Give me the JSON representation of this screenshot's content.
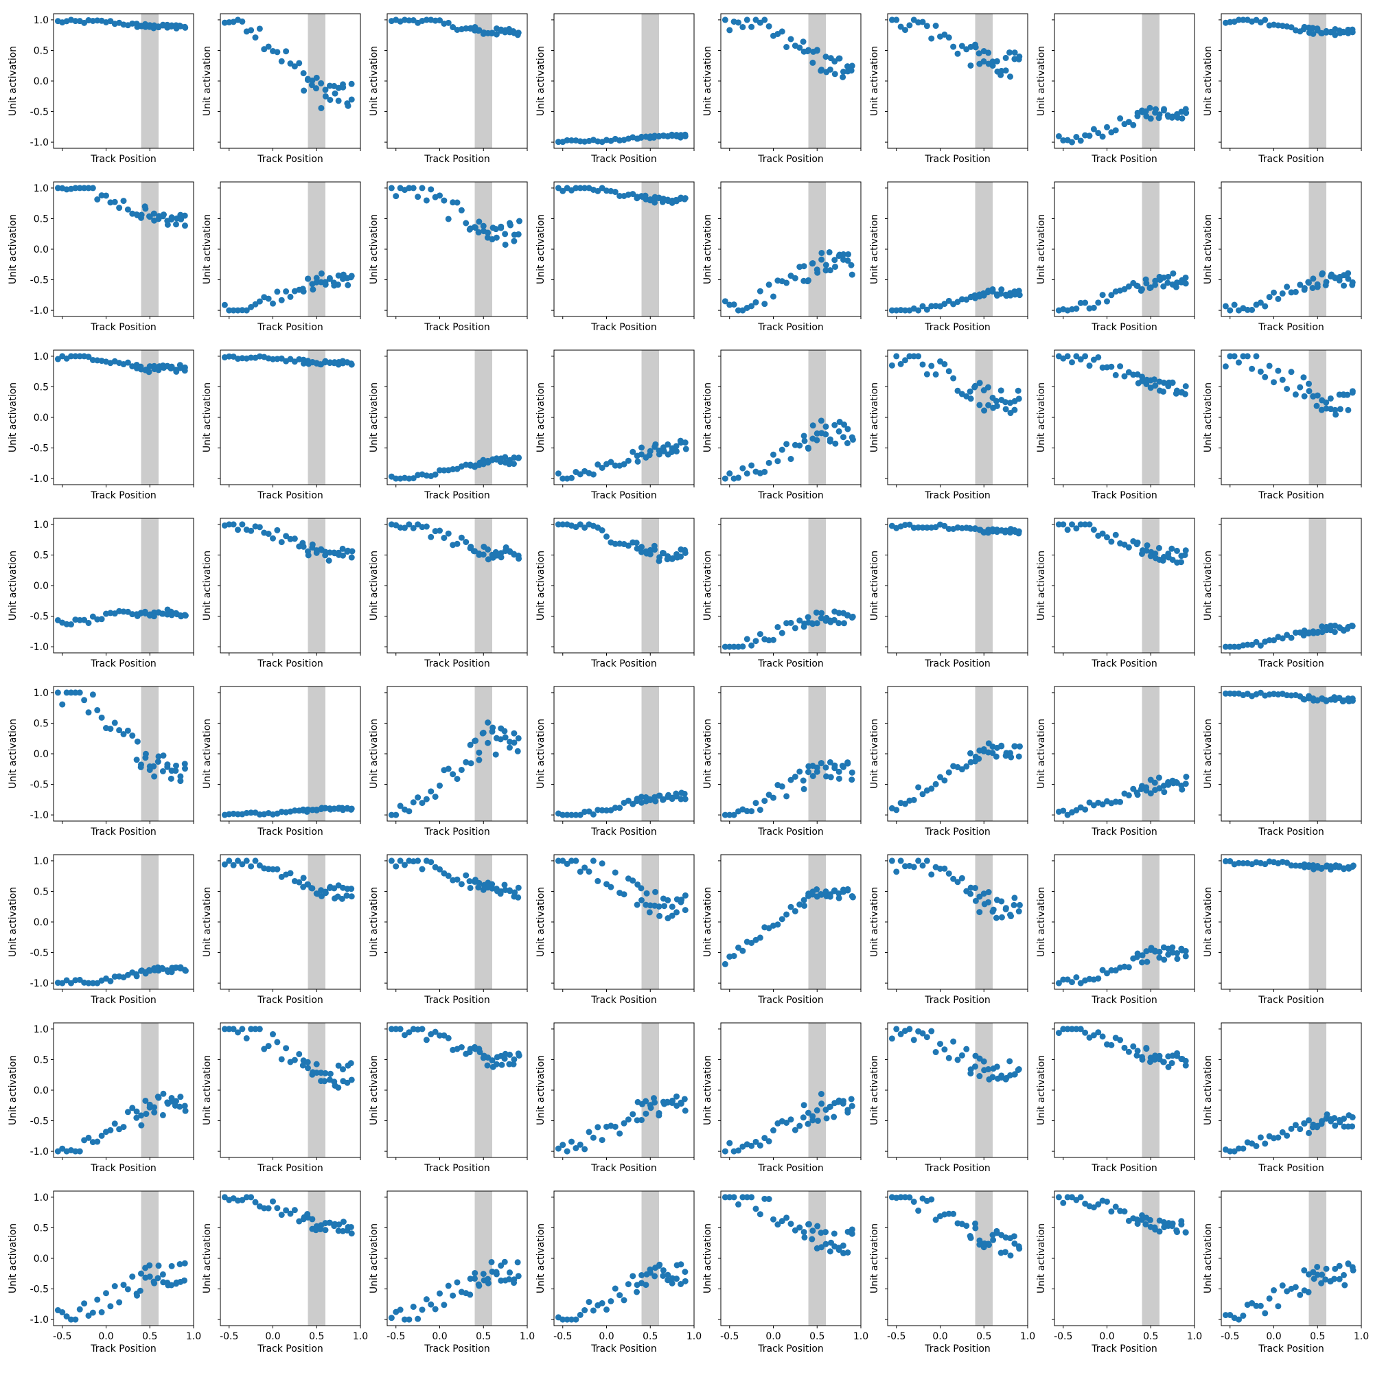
{
  "chart_data": {
    "type": "scatter",
    "layout": "8x8 grid of subplots",
    "xlabel": "Track Position",
    "ylabel": "Unit activation",
    "xlim": [
      -0.6,
      1.0
    ],
    "ylim": [
      -1.1,
      1.1
    ],
    "x_ticks": [
      "-0.5",
      "0.0",
      "0.5",
      "1.0"
    ],
    "y_ticks": [
      "1.0",
      "0.5",
      "0.0",
      "-0.5",
      "-1.0"
    ],
    "shaded_region": [
      0.4,
      0.6
    ],
    "colors": {
      "points": "#1f77b4",
      "shade": "#7f7f7f"
    },
    "panel_kinds": [
      [
        "flat_high",
        "decreasing_strong",
        "flat_high_mid",
        "flat_low",
        "decreasing_mid",
        "decreasing_mid",
        "increasing_low",
        "flat_high_mid"
      ],
      [
        "decreasing_gentle",
        "increasing_low",
        "decreasing_mid",
        "flat_high_mid",
        "increasing_mid",
        "increasing_very_low",
        "increasing_low",
        "increasing_low"
      ],
      [
        "flat_high_mid",
        "flat_high",
        "increasing_very_low",
        "increasing_low",
        "increasing_mid",
        "decreasing_mid",
        "decreasing_gentle",
        "decreasing_mid"
      ],
      [
        "flat_negative",
        "decreasing_gentle",
        "decreasing_gentle",
        "decreasing_gentle",
        "increasing_low",
        "flat_high",
        "decreasing_gentle",
        "increasing_very_low"
      ],
      [
        "decreasing_strong",
        "flat_low",
        "increasing_strong",
        "increasing_very_low",
        "increasing_mid",
        "increasing_from_mid",
        "increasing_low",
        "flat_high"
      ],
      [
        "flat_low_up",
        "decreasing_gentle",
        "decreasing_gentle",
        "decreasing_mid",
        "increasing_from_mid_high",
        "decreasing_mid",
        "increasing_low",
        "flat_high"
      ],
      [
        "increasing_mid",
        "decreasing_mid",
        "decreasing_gentle",
        "increasing_mid",
        "increasing_mid",
        "decreasing_mid",
        "decreasing_gentle",
        "increasing_low"
      ],
      [
        "increasing_mid",
        "decreasing_gentle",
        "increasing_mid",
        "increasing_mid",
        "decreasing_mid",
        "decreasing_mid",
        "decreasing_gentle",
        "increasing_mid"
      ]
    ]
  }
}
